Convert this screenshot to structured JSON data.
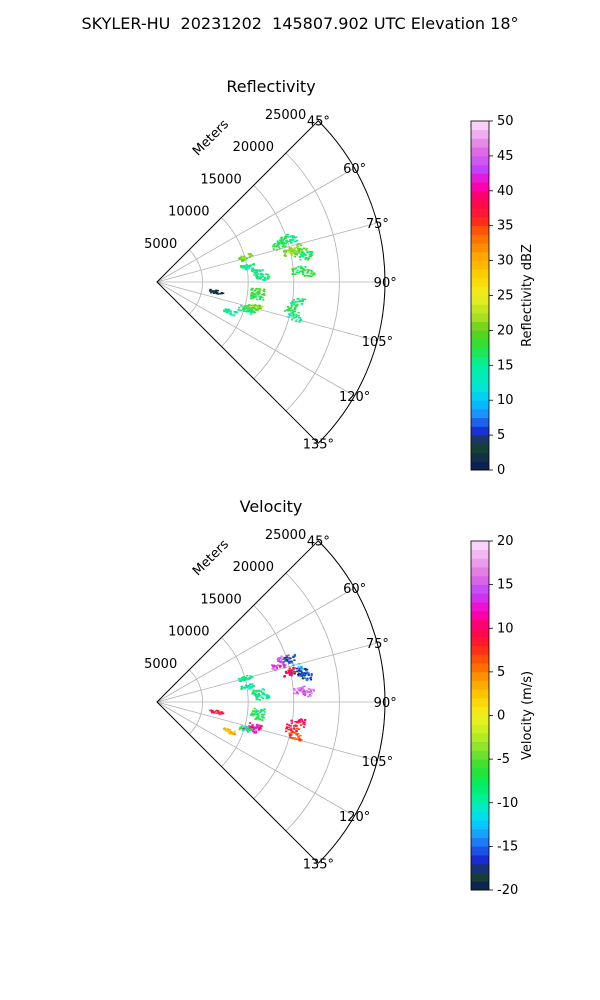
{
  "figure": {
    "title": "SKYLER-HU  20231202  145807.902 UTC Elevation 18°"
  },
  "chart_data": [
    {
      "type": "heatmap",
      "projection": "polar-sector",
      "title": "Reflectivity",
      "radial_axis_label": "Meters",
      "radial_ticks": [
        5000,
        10000,
        15000,
        20000,
        25000
      ],
      "radial_range": [
        0,
        25000
      ],
      "angle_range_deg": [
        45,
        135
      ],
      "angle_ticks": [
        "45°",
        "60°",
        "75°",
        "90°",
        "105°",
        "120°",
        "135°"
      ],
      "grid": true,
      "colorbar": {
        "label": "Reflectivity dBZ",
        "range": [
          0,
          50
        ],
        "ticks": [
          0,
          5,
          10,
          15,
          20,
          25,
          30,
          35,
          40,
          45,
          50
        ]
      },
      "echoes": [
        {
          "angle": 71,
          "range": 14500,
          "value": 17
        },
        {
          "angle": 73,
          "range": 13800,
          "value": 18
        },
        {
          "angle": 72,
          "range": 15200,
          "value": 16
        },
        {
          "angle": 76,
          "range": 15500,
          "value": 20
        },
        {
          "angle": 78,
          "range": 16000,
          "value": 19
        },
        {
          "angle": 77,
          "range": 14800,
          "value": 21
        },
        {
          "angle": 80,
          "range": 16500,
          "value": 16
        },
        {
          "angle": 85,
          "range": 15500,
          "value": 17
        },
        {
          "angle": 86,
          "range": 16500,
          "value": 18
        },
        {
          "angle": 74,
          "range": 10000,
          "value": 20
        },
        {
          "angle": 80,
          "range": 10000,
          "value": 16
        },
        {
          "angle": 84,
          "range": 11000,
          "value": 15
        },
        {
          "angle": 87,
          "range": 11500,
          "value": 16
        },
        {
          "angle": 95,
          "range": 11000,
          "value": 19
        },
        {
          "angle": 98,
          "range": 11000,
          "value": 17
        },
        {
          "angle": 104,
          "range": 11000,
          "value": 20
        },
        {
          "angle": 106,
          "range": 10500,
          "value": 19
        },
        {
          "angle": 107,
          "range": 10000,
          "value": 16
        },
        {
          "angle": 112,
          "range": 8500,
          "value": 15
        },
        {
          "angle": 98,
          "range": 15500,
          "value": 16
        },
        {
          "angle": 101,
          "range": 15000,
          "value": 17
        },
        {
          "angle": 104,
          "range": 15500,
          "value": 15
        },
        {
          "angle": 99,
          "range": 6500,
          "value": 2
        }
      ]
    },
    {
      "type": "heatmap",
      "projection": "polar-sector",
      "title": "Velocity",
      "radial_axis_label": "Meters",
      "radial_ticks": [
        5000,
        10000,
        15000,
        20000,
        25000
      ],
      "radial_range": [
        0,
        25000
      ],
      "angle_range_deg": [
        45,
        135
      ],
      "angle_ticks": [
        "45°",
        "60°",
        "75°",
        "90°",
        "105°",
        "120°",
        "135°"
      ],
      "grid": true,
      "colorbar": {
        "label": "Velocity (m/s)",
        "range": [
          -20,
          20
        ],
        "ticks": [
          -20,
          -15,
          -10,
          -5,
          0,
          5,
          10,
          15,
          20
        ]
      },
      "echoes": [
        {
          "angle": 71,
          "range": 14500,
          "value": 15
        },
        {
          "angle": 73,
          "range": 13800,
          "value": 14
        },
        {
          "angle": 72,
          "range": 15200,
          "value": -16
        },
        {
          "angle": 76,
          "range": 15500,
          "value": -14
        },
        {
          "angle": 78,
          "range": 16000,
          "value": -17
        },
        {
          "angle": 77,
          "range": 14800,
          "value": 9
        },
        {
          "angle": 80,
          "range": 16500,
          "value": -16
        },
        {
          "angle": 85,
          "range": 15500,
          "value": 15
        },
        {
          "angle": 86,
          "range": 16500,
          "value": 16
        },
        {
          "angle": 74,
          "range": 10000,
          "value": -9
        },
        {
          "angle": 80,
          "range": 10000,
          "value": -9
        },
        {
          "angle": 84,
          "range": 11000,
          "value": -9
        },
        {
          "angle": 87,
          "range": 11500,
          "value": -9
        },
        {
          "angle": 95,
          "range": 11000,
          "value": -8
        },
        {
          "angle": 98,
          "range": 11000,
          "value": -7
        },
        {
          "angle": 104,
          "range": 11000,
          "value": 11
        },
        {
          "angle": 106,
          "range": 10500,
          "value": 12
        },
        {
          "angle": 107,
          "range": 10000,
          "value": -8
        },
        {
          "angle": 112,
          "range": 8500,
          "value": 3
        },
        {
          "angle": 98,
          "range": 15500,
          "value": 9
        },
        {
          "angle": 101,
          "range": 15000,
          "value": 8
        },
        {
          "angle": 104,
          "range": 15500,
          "value": 7
        },
        {
          "angle": 99,
          "range": 6500,
          "value": 9
        }
      ]
    }
  ]
}
